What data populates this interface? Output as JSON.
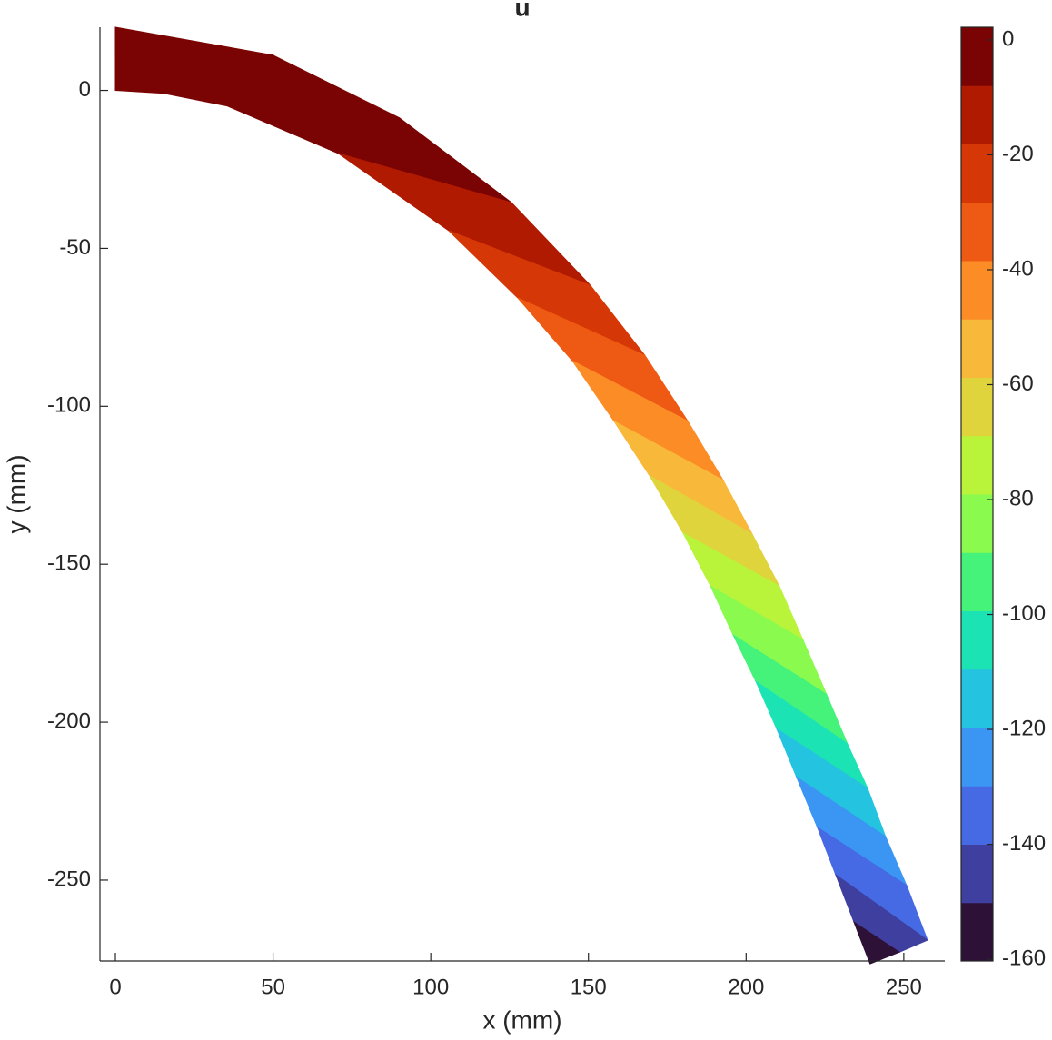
{
  "chart_data": {
    "type": "contour",
    "title": "u",
    "x_label": "x (mm)",
    "y_label": "y (mm)",
    "xlim": [
      -4.9,
      263
    ],
    "ylim": [
      -275.6,
      20
    ],
    "xticks": [
      0,
      50,
      100,
      150,
      200,
      250
    ],
    "yticks": [
      0,
      -50,
      -100,
      -150,
      -200,
      -250
    ],
    "top_x": [
      0,
      49.8,
      90.1,
      125.6,
      150.6,
      167.9,
      181.5,
      192.7,
      201.9,
      210.5,
      218.0,
      225.5,
      232.1,
      238.5,
      244.2,
      250.9,
      257.5,
      248.6,
      239.3
    ],
    "top_y": [
      20,
      11.2,
      -8.7,
      -35.5,
      -61.7,
      -83.9,
      -104.7,
      -123.4,
      -140.4,
      -156.9,
      -173.9,
      -191.2,
      -206.8,
      -220.9,
      -236.2,
      -251.7,
      -269.0,
      -272.8,
      -276.5
    ],
    "bottom_x": [
      0,
      15.3,
      35.4,
      70.6,
      105.7,
      127.6,
      144.9,
      158.1,
      169.4,
      180.0,
      188.7,
      195.9,
      203.1,
      209.7,
      216.0,
      222.6,
      228.4,
      234.2,
      239.3
    ],
    "bottom_y": [
      0,
      -0.9,
      -4.9,
      -19.9,
      -44.4,
      -65.7,
      -85.6,
      -104.7,
      -122.0,
      -140.1,
      -156.9,
      -172.4,
      -187.1,
      -202.1,
      -217.4,
      -233.3,
      -248.3,
      -263.3,
      -276.5
    ],
    "strip_band": [
      15,
      15,
      15,
      14,
      13,
      12,
      11,
      10,
      9,
      8,
      7,
      6,
      5,
      4,
      3,
      2,
      1,
      0
    ],
    "clim": [
      -160.3,
      2.2
    ],
    "cticks": [
      0,
      -20,
      -40,
      -60,
      -80,
      -100,
      -120,
      -140,
      -160
    ],
    "colors": [
      "#2e1137",
      "#3f3f9f",
      "#4669e4",
      "#3b96f3",
      "#24c3df",
      "#1ce3b4",
      "#45f27a",
      "#8bfa4f",
      "#b9f43a",
      "#dfd43b",
      "#f8b93b",
      "#fb8c26",
      "#ee5a13",
      "#d53806",
      "#b01a01",
      "#7a0403"
    ]
  }
}
